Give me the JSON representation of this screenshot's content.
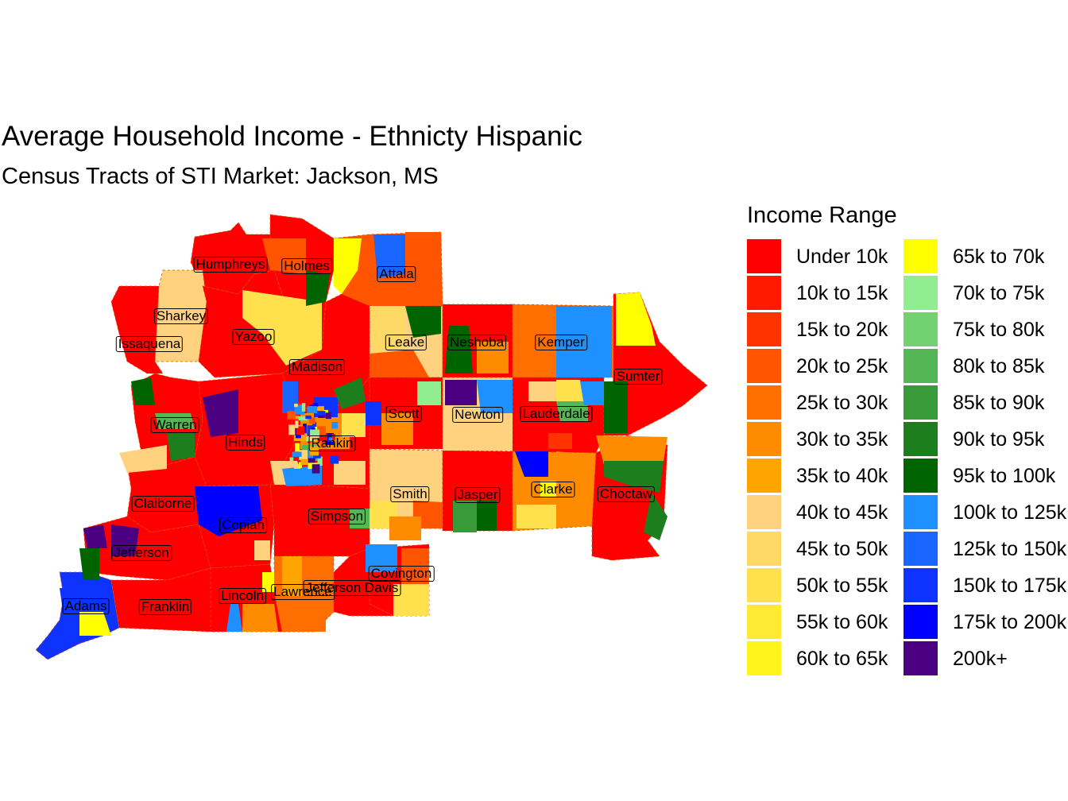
{
  "title": "Average Household Income - Ethnicty Hispanic",
  "subtitle": "Census Tracts of STI Market: Jackson, MS",
  "legend": {
    "title": "Income Range",
    "items": [
      {
        "label": "Under 10k",
        "color": "#FF0000"
      },
      {
        "label": "10k to 15k",
        "color": "#FF1A00"
      },
      {
        "label": "15k to 20k",
        "color": "#FF3300"
      },
      {
        "label": "20k to 25k",
        "color": "#FF5500"
      },
      {
        "label": "25k to 30k",
        "color": "#FF6E00"
      },
      {
        "label": "30k to 35k",
        "color": "#FF8C00"
      },
      {
        "label": "35k to 40k",
        "color": "#FFA500"
      },
      {
        "label": "40k to 45k",
        "color": "#FFD27F"
      },
      {
        "label": "45k to 50k",
        "color": "#FFD966"
      },
      {
        "label": "50k to 55k",
        "color": "#FFE14D"
      },
      {
        "label": "55k to 60k",
        "color": "#FFEA33"
      },
      {
        "label": "60k to 65k",
        "color": "#FFF51A"
      },
      {
        "label": "65k to 70k",
        "color": "#FFFF00"
      },
      {
        "label": "70k to 75k",
        "color": "#90EE90"
      },
      {
        "label": "75k to 80k",
        "color": "#72D272"
      },
      {
        "label": "80k to 85k",
        "color": "#55B655"
      },
      {
        "label": "85k to 90k",
        "color": "#389A38"
      },
      {
        "label": "90k to 95k",
        "color": "#1C7E1C"
      },
      {
        "label": "95k to 100k",
        "color": "#006400"
      },
      {
        "label": "100k to 125k",
        "color": "#1E90FF"
      },
      {
        "label": "125k to 150k",
        "color": "#1866FF"
      },
      {
        "label": "150k to 175k",
        "color": "#0F33FF"
      },
      {
        "label": "175k to 200k",
        "color": "#0000FF"
      },
      {
        "label": "200k+",
        "color": "#4B0082"
      }
    ]
  },
  "counties": [
    {
      "name": "Humphreys",
      "fill": "#FF0000"
    },
    {
      "name": "Holmes",
      "fill": "#FF0000"
    },
    {
      "name": "Attala",
      "fill": "#FF5500"
    },
    {
      "name": "Sharkey",
      "fill": "#FFD27F"
    },
    {
      "name": "Issaquena",
      "fill": "#FF0000"
    },
    {
      "name": "Yazoo",
      "fill": "#FF0000"
    },
    {
      "name": "Leake",
      "fill": "#FFD27F"
    },
    {
      "name": "Neshoba",
      "fill": "#FF0000"
    },
    {
      "name": "Kemper",
      "fill": "#FF6E00"
    },
    {
      "name": "Madison",
      "fill": "#FF0000"
    },
    {
      "name": "Sumter",
      "fill": "#FF0000"
    },
    {
      "name": "Warren",
      "fill": "#FF0000"
    },
    {
      "name": "Scott",
      "fill": "#FF0000"
    },
    {
      "name": "Newton",
      "fill": "#FFD27F"
    },
    {
      "name": "Lauderdale",
      "fill": "#FF0000"
    },
    {
      "name": "Hinds",
      "fill": "#FF0000"
    },
    {
      "name": "Rankin",
      "fill": "#FF0000"
    },
    {
      "name": "Claiborne",
      "fill": "#FF0000"
    },
    {
      "name": "Smith",
      "fill": "#FFD27F"
    },
    {
      "name": "Jasper",
      "fill": "#FF0000"
    },
    {
      "name": "Clarke",
      "fill": "#FF8C00"
    },
    {
      "name": "Choctaw",
      "fill": "#FF0000"
    },
    {
      "name": "Copiah",
      "fill": "#FF0000"
    },
    {
      "name": "Simpson",
      "fill": "#FF0000"
    },
    {
      "name": "Jefferson",
      "fill": "#FF0000"
    },
    {
      "name": "Covington",
      "fill": "#FF0000"
    },
    {
      "name": "Jefferson Davis",
      "fill": "#FF0000"
    },
    {
      "name": "Lawrence",
      "fill": "#FF6E00"
    },
    {
      "name": "Lincoln",
      "fill": "#FF0000"
    },
    {
      "name": "Adams",
      "fill": "#0F33FF"
    },
    {
      "name": "Franklin",
      "fill": "#FF0000"
    }
  ]
}
